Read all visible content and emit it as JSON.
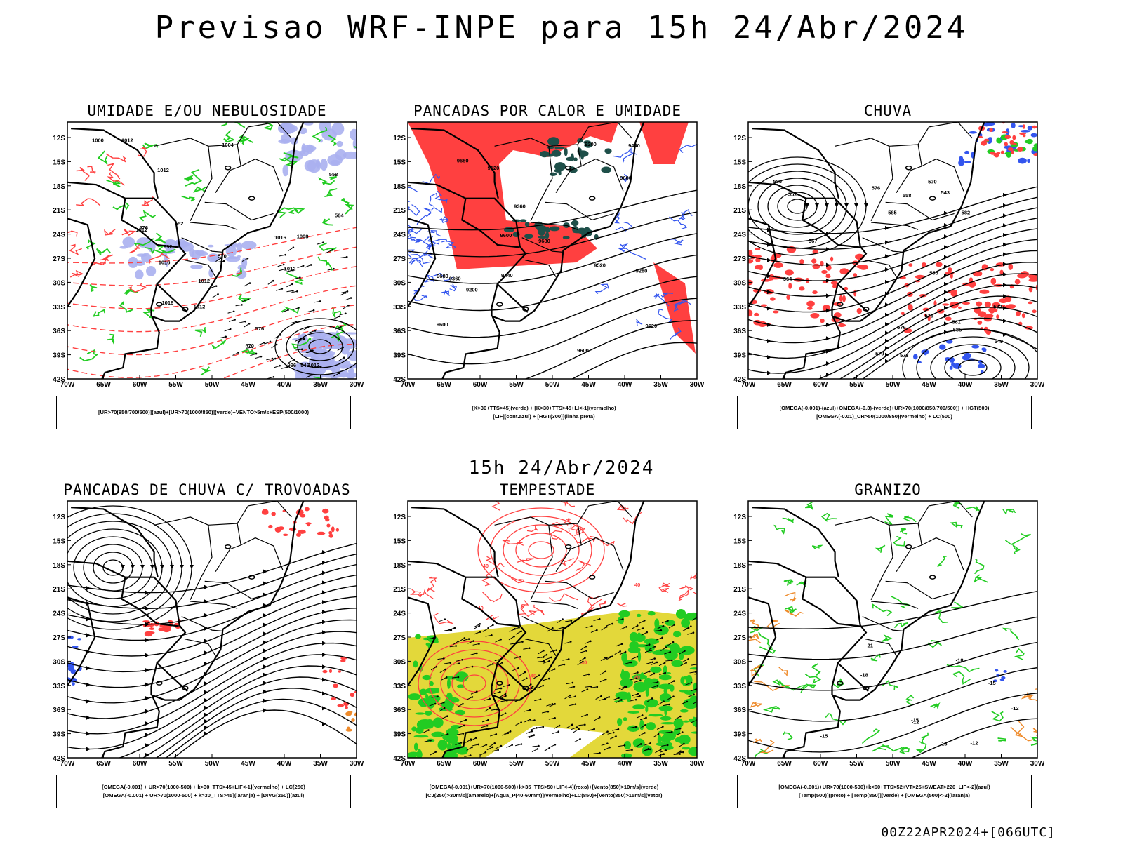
{
  "header": {
    "title": "Previsao WRF-INPE  para 15h 24/Abr/2024"
  },
  "mid_title": "15h 24/Abr/2024",
  "footer_id": "00Z22APR2024+[066UTC]",
  "colors": {
    "red": "#ff4040",
    "green": "#22cc22",
    "blue": "#3355ee",
    "lavender": "#aab0f0",
    "dark_teal": "#1e4f49",
    "yellow": "#e3d83a",
    "orange": "#ee8a2a",
    "black": "#000000"
  },
  "chart_data": [
    {
      "type": "map",
      "title": "UMIDADE E/OU NEBULOSIDADE",
      "x_ticks": [
        "70W",
        "65W",
        "60W",
        "55W",
        "50W",
        "45W",
        "40W",
        "35W",
        "30W"
      ],
      "y_ticks": [
        "12S",
        "15S",
        "18S",
        "21S",
        "24S",
        "27S",
        "30S",
        "33S",
        "36S",
        "39S",
        "42S"
      ],
      "legend": [
        "[UR>70(850/700/500)](azul)+[UR>70(1000/850)](verde)+VENTO>5m/s+ESP(500/1000)"
      ],
      "contour_labels": [
        "1012",
        "1012",
        "1012",
        "1012",
        "1012",
        "1012",
        "1012",
        "1016",
        "1016",
        "1016",
        "1008",
        "1004",
        "1000",
        "996",
        "992",
        "576",
        "570",
        "564",
        "558",
        "552",
        "546",
        "576",
        "570"
      ]
    },
    {
      "type": "map",
      "title": "PANCADAS POR CALOR E UMIDADE",
      "x_ticks": [
        "70W",
        "65W",
        "60W",
        "55W",
        "50W",
        "45W",
        "40W",
        "35W",
        "30W"
      ],
      "y_ticks": [
        "12S",
        "15S",
        "18S",
        "21S",
        "24S",
        "27S",
        "30S",
        "33S",
        "36S",
        "39S",
        "42S"
      ],
      "legend": [
        "[K>30+TTS>45](verde) + [K>30+TTS>45+LI<-1](vermelho)",
        "[LIF](cont.azul) + [HGT(300)](linha preta)"
      ],
      "contour_labels": [
        "9680",
        "9680",
        "9680",
        "9600",
        "9600",
        "9600",
        "9600",
        "9520",
        "9520",
        "9440",
        "9440",
        "9360",
        "9360",
        "9280",
        "9200",
        "9200",
        "9120"
      ]
    },
    {
      "type": "map",
      "title": "CHUVA",
      "x_ticks": [
        "70W",
        "65W",
        "60W",
        "55W",
        "50W",
        "45W",
        "40W",
        "35W",
        "30W"
      ],
      "y_ticks": [
        "12S",
        "15S",
        "18S",
        "21S",
        "24S",
        "27S",
        "30S",
        "33S",
        "36S",
        "39S",
        "42S"
      ],
      "legend": [
        "[OMEGA(-0.001)-(azul)+OMEGA(-0.3)-(verde)+UR>70(1000/850/700/500)] + HGT(500)",
        "[OMEGA(-0.01)_UR>50(1000/850)(vermelho) + LC(500)"
      ],
      "contour_labels": [
        "585",
        "585",
        "585",
        "582",
        "579",
        "576",
        "573",
        "570",
        "567",
        "564",
        "561",
        "558",
        "555",
        "552",
        "549",
        "543",
        "582",
        "579",
        "576"
      ]
    },
    {
      "type": "map",
      "title": "PANCADAS DE CHUVA C/ TROVOADAS",
      "x_ticks": [
        "70W",
        "65W",
        "60W",
        "55W",
        "50W",
        "45W",
        "40W",
        "35W",
        "30W"
      ],
      "y_ticks": [
        "12S",
        "15S",
        "18S",
        "21S",
        "24S",
        "27S",
        "30S",
        "33S",
        "36S",
        "39S",
        "42S"
      ],
      "legend": [
        "[OMEGA(-0.001) + UR>70(1000-500) + k>30_TTS>45+LIF<-1](vermelho) + LC(250)",
        "[OMEGA(-0.001) + UR>70(1000-500) + k>30_TTS>45](laranja) + [DIVG(250)](azul)"
      ],
      "contour_labels": []
    },
    {
      "type": "map",
      "title": "TEMPESTADE",
      "x_ticks": [
        "70W",
        "65W",
        "60W",
        "55W",
        "50W",
        "45W",
        "40W",
        "35W",
        "30W"
      ],
      "y_ticks": [
        "12S",
        "15S",
        "18S",
        "21S",
        "24S",
        "27S",
        "30S",
        "33S",
        "36S",
        "39S",
        "42S"
      ],
      "legend": [
        "[OMEGA(-0.001)+UR>70(1000-500)+k>35_TTS>50+LIF<-4](roxo)+[Vento(850)>10m/s](verde)",
        "[CJ(250)>30m/s](amarelo)+[Agua_P(40-60mm)](vermelho)+LC(850)+[Vento(850)>15m/s](vetor)"
      ],
      "contour_labels": [
        "40",
        "40",
        "40",
        "40",
        "40",
        "40"
      ]
    },
    {
      "type": "map",
      "title": "GRANIZO",
      "x_ticks": [
        "70W",
        "65W",
        "60W",
        "55W",
        "50W",
        "45W",
        "40W",
        "35W",
        "30W"
      ],
      "y_ticks": [
        "12S",
        "15S",
        "18S",
        "21S",
        "24S",
        "27S",
        "30S",
        "33S",
        "36S",
        "39S",
        "42S"
      ],
      "legend": [
        "[OMEGA(-0.001)+UR>70(1000-500)+k<60+TTS>52+VT>25+SWEAT>220+LIF<-2](azul)",
        "[Temp(500)](preto) + [Temp(850)](verde) + [OMEGA(500)<-2](laranja)"
      ],
      "contour_labels": [
        "-12",
        "-12",
        "-12",
        "-15",
        "-15",
        "-18",
        "-21",
        "-18",
        "-15",
        "-15"
      ]
    }
  ]
}
